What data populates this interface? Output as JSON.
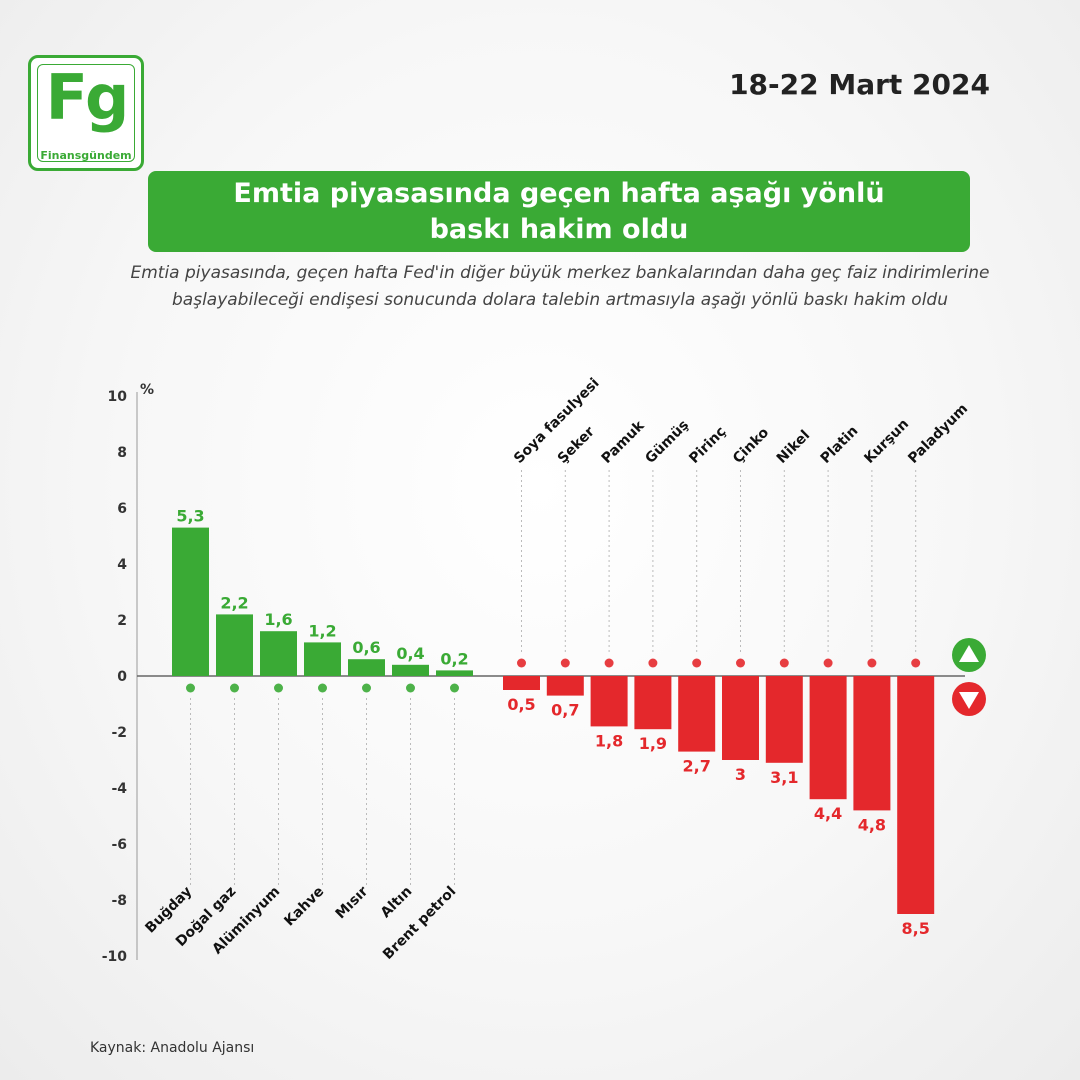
{
  "brand": {
    "logo_text": "Fg",
    "name": "Finansgündem"
  },
  "date": "18-22 Mart 2024",
  "title": "Emtia piyasasında geçen hafta aşağı yönlü baskı hakim oldu",
  "subtitle": "Emtia piyasasında, geçen hafta Fed'in diğer büyük merkez bankalarından daha geç faiz indirimlerine başlayabileceği endişesi sonucunda dolara talebin artmasıyla aşağı yönlü baskı hakim oldu",
  "source": "Kaynak: Anadolu Ajansı",
  "colors": {
    "green": "#3aaa35",
    "red": "#e4282c"
  },
  "chart_data": {
    "type": "bar",
    "ylabel": "%",
    "ylim": [
      -10,
      10
    ],
    "yticks": [
      10,
      8,
      6,
      4,
      2,
      0,
      -2,
      -4,
      -6,
      -8,
      -10
    ],
    "gainers": [
      {
        "name": "Buğday",
        "value": 5.3,
        "label": "5,3",
        "icon": "wheat-icon"
      },
      {
        "name": "Doğal gaz",
        "value": 2.2,
        "label": "2,2",
        "icon": "flame-icon"
      },
      {
        "name": "Alüminyum",
        "value": 1.6,
        "label": "1,6",
        "icon": "metal-bars-icon"
      },
      {
        "name": "Kahve",
        "value": 1.2,
        "label": "1,2",
        "icon": "coffee-bean-icon"
      },
      {
        "name": "Mısır",
        "value": 0.6,
        "label": "0,6",
        "icon": "corn-icon"
      },
      {
        "name": "Altın",
        "value": 0.4,
        "label": "0,4",
        "icon": "gold-bars-icon"
      },
      {
        "name": "Brent petrol",
        "value": 0.2,
        "label": "0,2",
        "icon": "oil-barrel-icon"
      }
    ],
    "losers": [
      {
        "name": "Soya fasulyesi",
        "value": -0.5,
        "label": "0,5",
        "icon": "soybean-icon"
      },
      {
        "name": "Şeker",
        "value": -0.7,
        "label": "0,7",
        "icon": "sugar-icon"
      },
      {
        "name": "Pamuk",
        "value": -1.8,
        "label": "1,8",
        "icon": "cotton-icon"
      },
      {
        "name": "Gümüş",
        "value": -1.9,
        "label": "1,9",
        "icon": "silver-bars-icon"
      },
      {
        "name": "Pirinç",
        "value": -2.7,
        "label": "2,7",
        "icon": "rice-icon"
      },
      {
        "name": "Çinko",
        "value": -3.0,
        "label": "3",
        "icon": "zinc-bars-icon"
      },
      {
        "name": "Nikel",
        "value": -3.1,
        "label": "3,1",
        "icon": "nickel-bars-icon"
      },
      {
        "name": "Platin",
        "value": -4.4,
        "label": "4,4",
        "icon": "platinum-bars-icon"
      },
      {
        "name": "Kurşun",
        "value": -4.8,
        "label": "4,8",
        "icon": "lead-bars-icon"
      },
      {
        "name": "Paladyum",
        "value": -8.5,
        "label": "8,5",
        "icon": "palladium-bars-icon"
      }
    ],
    "legend": {
      "up_icon": "arrow-up-icon",
      "down_icon": "arrow-down-icon"
    }
  }
}
